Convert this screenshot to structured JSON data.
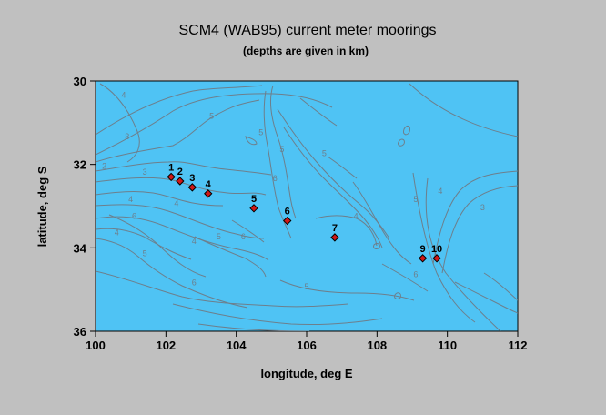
{
  "figure": {
    "title": "SCM4 (WAB95) current meter moorings",
    "subtitle": "(depths are given in km)",
    "xlabel": "longitude, deg E",
    "ylabel": "latitude, deg S"
  },
  "colors": {
    "background": "#c0c0c0",
    "ocean": "#4fc3f4",
    "contour": "#6d7f8c",
    "mooring": "#d01818"
  },
  "map": {
    "xlim": [
      100,
      112
    ],
    "ylim": [
      30,
      36
    ],
    "y_inverted": true,
    "x_ticks": [
      "100",
      "102",
      "104",
      "106",
      "108",
      "110",
      "112"
    ],
    "y_ticks": [
      "30",
      "32",
      "34",
      "36"
    ]
  },
  "moorings": [
    {
      "label": "1",
      "lon": 102.15,
      "lat": 32.3
    },
    {
      "label": "2",
      "lon": 102.4,
      "lat": 32.4
    },
    {
      "label": "3",
      "lon": 102.75,
      "lat": 32.55
    },
    {
      "label": "4",
      "lon": 103.2,
      "lat": 32.7
    },
    {
      "label": "5",
      "lon": 104.5,
      "lat": 33.05
    },
    {
      "label": "6",
      "lon": 105.45,
      "lat": 33.35
    },
    {
      "label": "7",
      "lon": 106.8,
      "lat": 33.75
    },
    {
      "label": "9",
      "lon": 109.3,
      "lat": 34.25
    },
    {
      "label": "10",
      "lon": 109.7,
      "lat": 34.25
    }
  ],
  "contour_labels": [
    {
      "text": "4",
      "lon": 100.8,
      "lat": 30.4
    },
    {
      "text": "3",
      "lon": 100.9,
      "lat": 31.4
    },
    {
      "text": "5",
      "lon": 103.3,
      "lat": 30.9
    },
    {
      "text": "2",
      "lon": 100.25,
      "lat": 32.1
    },
    {
      "text": "3",
      "lon": 101.4,
      "lat": 32.25
    },
    {
      "text": "4",
      "lon": 101.0,
      "lat": 32.9
    },
    {
      "text": "6",
      "lon": 101.1,
      "lat": 33.3
    },
    {
      "text": "4",
      "lon": 100.6,
      "lat": 33.7
    },
    {
      "text": "4",
      "lon": 102.3,
      "lat": 33.0
    },
    {
      "text": "4",
      "lon": 102.8,
      "lat": 33.9
    },
    {
      "text": "5",
      "lon": 101.4,
      "lat": 34.2
    },
    {
      "text": "5",
      "lon": 103.5,
      "lat": 33.8
    },
    {
      "text": "6",
      "lon": 104.2,
      "lat": 33.8
    },
    {
      "text": "5",
      "lon": 104.7,
      "lat": 31.3
    },
    {
      "text": "5",
      "lon": 105.3,
      "lat": 31.7
    },
    {
      "text": "6",
      "lon": 105.1,
      "lat": 32.4
    },
    {
      "text": "5",
      "lon": 106.5,
      "lat": 31.8
    },
    {
      "text": "4",
      "lon": 107.4,
      "lat": 33.3
    },
    {
      "text": "6",
      "lon": 102.8,
      "lat": 34.9
    },
    {
      "text": "5",
      "lon": 106.0,
      "lat": 35.0
    },
    {
      "text": "5",
      "lon": 109.1,
      "lat": 32.9
    },
    {
      "text": "4",
      "lon": 109.8,
      "lat": 32.7
    },
    {
      "text": "3",
      "lon": 111.0,
      "lat": 33.1
    },
    {
      "text": "6",
      "lon": 109.1,
      "lat": 34.7
    }
  ]
}
